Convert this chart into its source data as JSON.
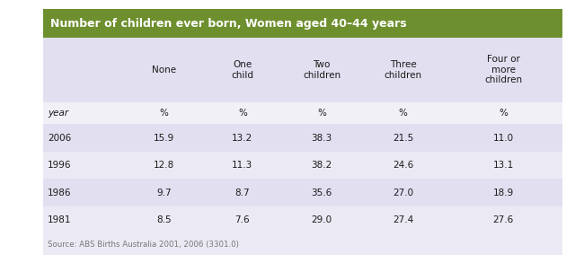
{
  "title": "Number of children ever born, Women aged 40–44 years",
  "title_bg_color": "#6e8f2e",
  "title_text_color": "#ffffff",
  "col_headers": [
    "",
    "None",
    "One\nchild",
    "Two\nchildren",
    "Three\nchildren",
    "Four or\nmore\nchildren"
  ],
  "unit_row": [
    "year",
    "%",
    "%",
    "%",
    "%",
    "%"
  ],
  "rows": [
    [
      "2006",
      "15.9",
      "13.2",
      "38.3",
      "21.5",
      "11.0"
    ],
    [
      "1996",
      "12.8",
      "11.3",
      "38.2",
      "24.6",
      "13.1"
    ],
    [
      "1986",
      "9.7",
      "8.7",
      "35.6",
      "27.0",
      "18.9"
    ],
    [
      "1981",
      "8.5",
      "7.6",
      "29.0",
      "27.4",
      "27.6"
    ]
  ],
  "source_text": "Source: ABS Births Australia 2001, 2006 (3301.0)",
  "outer_bg": "#ffffff",
  "table_outer_bg": "#f2f0f7",
  "header_bg": "#e2dff0",
  "row_colors": [
    "#e2dff0",
    "#ebe9f3"
  ],
  "source_bg": "#ebe9f3",
  "text_color": "#1a1a1a",
  "source_color": "#777777",
  "title_fontsize": 9.0,
  "header_fontsize": 7.5,
  "data_fontsize": 7.5,
  "source_fontsize": 6.2
}
